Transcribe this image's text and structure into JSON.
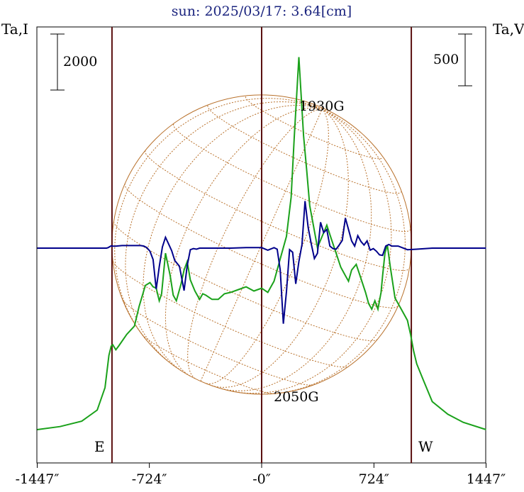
{
  "title": "sun: 2025/03/17: 3.64[cm]",
  "colors": {
    "title": "#1a237e",
    "stokes_i": "#1aa11a",
    "stokes_v": "#00008b",
    "limb_lines": "#5a1010",
    "grid": "#b8702a",
    "axes": "#000000"
  },
  "labels": {
    "left_axis": "Ta,I",
    "right_axis": "Ta,V",
    "left_scale": "2000",
    "right_scale": "500",
    "east": "E",
    "west": "W",
    "max_field": "1930G",
    "min_field": "2050G"
  },
  "chart_data": {
    "type": "line",
    "title": "sun: 2025/03/17: 3.64[cm]",
    "xlabel": "",
    "ylabel_left": "Ta,I",
    "ylabel_right": "Ta,V",
    "x_ticks": [
      "-1447″",
      "-724″",
      "-0″",
      "724″",
      "1447″"
    ],
    "x_tick_values": [
      -1447,
      -724,
      0,
      724,
      1447
    ],
    "xlim": [
      -1447,
      1447
    ],
    "solar_limb_arcsec": [
      -965,
      965
    ],
    "scale_bars": {
      "left_I": 2000,
      "right_V": 500
    },
    "annotations": [
      "1930G",
      "2050G"
    ],
    "series": [
      {
        "name": "Ta,I",
        "axis": "left",
        "color": "#1aa11a",
        "x": [
          -1447,
          -1300,
          -1160,
          -1060,
          -1010,
          -985,
          -970,
          -960,
          -940,
          -920,
          -870,
          -820,
          -790,
          -750,
          -720,
          -700,
          -680,
          -660,
          -645,
          -620,
          -590,
          -570,
          -550,
          -520,
          -500,
          -480,
          -460,
          -430,
          -400,
          -380,
          -360,
          -320,
          -280,
          -240,
          -200,
          -150,
          -100,
          -50,
          0,
          40,
          80,
          120,
          160,
          190,
          210,
          240,
          270,
          290,
          310,
          330,
          360,
          390,
          420,
          450,
          480,
          510,
          540,
          560,
          580,
          610,
          640,
          670,
          690,
          710,
          730,
          750,
          770,
          780,
          795,
          810,
          830,
          860,
          900,
          940,
          960,
          980,
          1000,
          1040,
          1100,
          1200,
          1300,
          1447
        ],
        "y": [
          0,
          110,
          300,
          700,
          1500,
          2650,
          2980,
          3030,
          2850,
          3000,
          3400,
          3700,
          4400,
          5150,
          5250,
          5100,
          5050,
          4600,
          4850,
          6300,
          5500,
          4800,
          4600,
          5200,
          5700,
          6000,
          5350,
          4950,
          4650,
          4850,
          4800,
          4650,
          4650,
          4850,
          4900,
          5000,
          5100,
          4950,
          5050,
          4900,
          5300,
          6100,
          6900,
          8300,
          10400,
          13300,
          10500,
          9300,
          8000,
          7400,
          6500,
          6900,
          7300,
          6800,
          6300,
          5800,
          5500,
          5300,
          5700,
          5900,
          5400,
          4900,
          4500,
          4300,
          4600,
          4300,
          4900,
          5500,
          6300,
          6600,
          5800,
          4700,
          4300,
          3900,
          3400,
          2800,
          2350,
          1800,
          1000,
          550,
          260,
          0
        ]
      },
      {
        "name": "Ta,V",
        "axis": "right",
        "color": "#00008b",
        "x": [
          -1447,
          -1200,
          -1000,
          -990,
          -970,
          -950,
          -900,
          -850,
          -800,
          -780,
          -760,
          -740,
          -720,
          -700,
          -680,
          -660,
          -640,
          -620,
          -600,
          -580,
          -560,
          -530,
          -500,
          -480,
          -460,
          -440,
          -420,
          -400,
          -360,
          -300,
          -200,
          -100,
          0,
          40,
          80,
          100,
          120,
          140,
          160,
          180,
          200,
          220,
          240,
          260,
          280,
          300,
          320,
          340,
          360,
          380,
          400,
          420,
          440,
          460,
          480,
          500,
          520,
          540,
          560,
          580,
          600,
          620,
          640,
          660,
          680,
          700,
          720,
          740,
          760,
          780,
          800,
          820,
          840,
          880,
          940,
          1000,
          1100,
          1200,
          1447
        ],
        "y": [
          0,
          0,
          0,
          5,
          22,
          18,
          25,
          25,
          25,
          25,
          20,
          5,
          -30,
          -110,
          -395,
          -180,
          10,
          105,
          40,
          -25,
          -120,
          -175,
          -410,
          -170,
          -15,
          -5,
          -10,
          0,
          0,
          0,
          0,
          5,
          5,
          -20,
          5,
          -10,
          -210,
          -730,
          -420,
          -15,
          -40,
          -345,
          -130,
          35,
          455,
          200,
          40,
          -100,
          -50,
          250,
          150,
          180,
          20,
          -5,
          -10,
          30,
          75,
          290,
          180,
          70,
          20,
          120,
          65,
          30,
          70,
          -20,
          -5,
          -30,
          -65,
          -70,
          20,
          35,
          20,
          20,
          -15,
          -10,
          0,
          0,
          0
        ]
      }
    ]
  }
}
